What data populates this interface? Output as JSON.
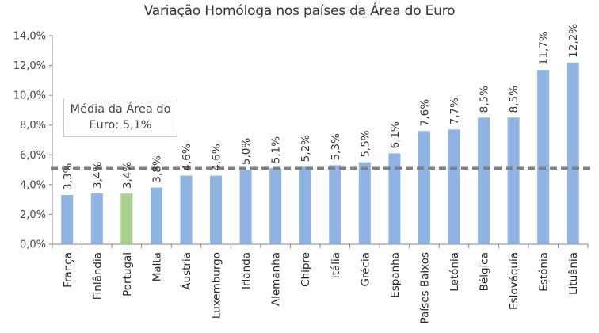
{
  "chart_data": {
    "type": "bar",
    "title": "Variação Homóloga nos países da Área do Euro",
    "categories": [
      "França",
      "Finlândia",
      "Portugal",
      "Malta",
      "Áustria",
      "Luxemburgo",
      "Irlanda",
      "Alemanha",
      "Chipre",
      "Itália",
      "Grécia",
      "Espanha",
      "Países Baixos",
      "Letónia",
      "Bélgica",
      "Eslováquia",
      "Estónia",
      "Lituânia"
    ],
    "values": [
      3.3,
      3.4,
      3.4,
      3.8,
      4.6,
      4.6,
      5.0,
      5.1,
      5.2,
      5.3,
      5.5,
      6.1,
      7.6,
      7.7,
      8.5,
      8.5,
      11.7,
      12.2
    ],
    "value_labels": [
      "3,3%",
      "3,4%",
      "3,4%",
      "3,8%",
      "4,6%",
      "4,6%",
      "5,0%",
      "5,1%",
      "5,2%",
      "5,3%",
      "5,5%",
      "6,1%",
      "7,6%",
      "7,7%",
      "8,5%",
      "8,5%",
      "11,7%",
      "12,2%"
    ],
    "highlight_category": "Portugal",
    "colors": {
      "bar": "#8eb4e3",
      "highlight": "#a9d18e",
      "average_line": "#7f7f7f"
    },
    "ylim": [
      0,
      14
    ],
    "yticks": [
      0,
      2,
      4,
      6,
      8,
      10,
      12,
      14
    ],
    "ytick_labels": [
      "0,0%",
      "2,0%",
      "4,0%",
      "6,0%",
      "8,0%",
      "10,0%",
      "12,0%",
      "14,0%"
    ],
    "grid": false,
    "average_line": {
      "value": 5.1,
      "style": "dashed"
    },
    "annotation": {
      "line1": "Média da Área do",
      "line2": "Euro:  5,1%"
    }
  }
}
